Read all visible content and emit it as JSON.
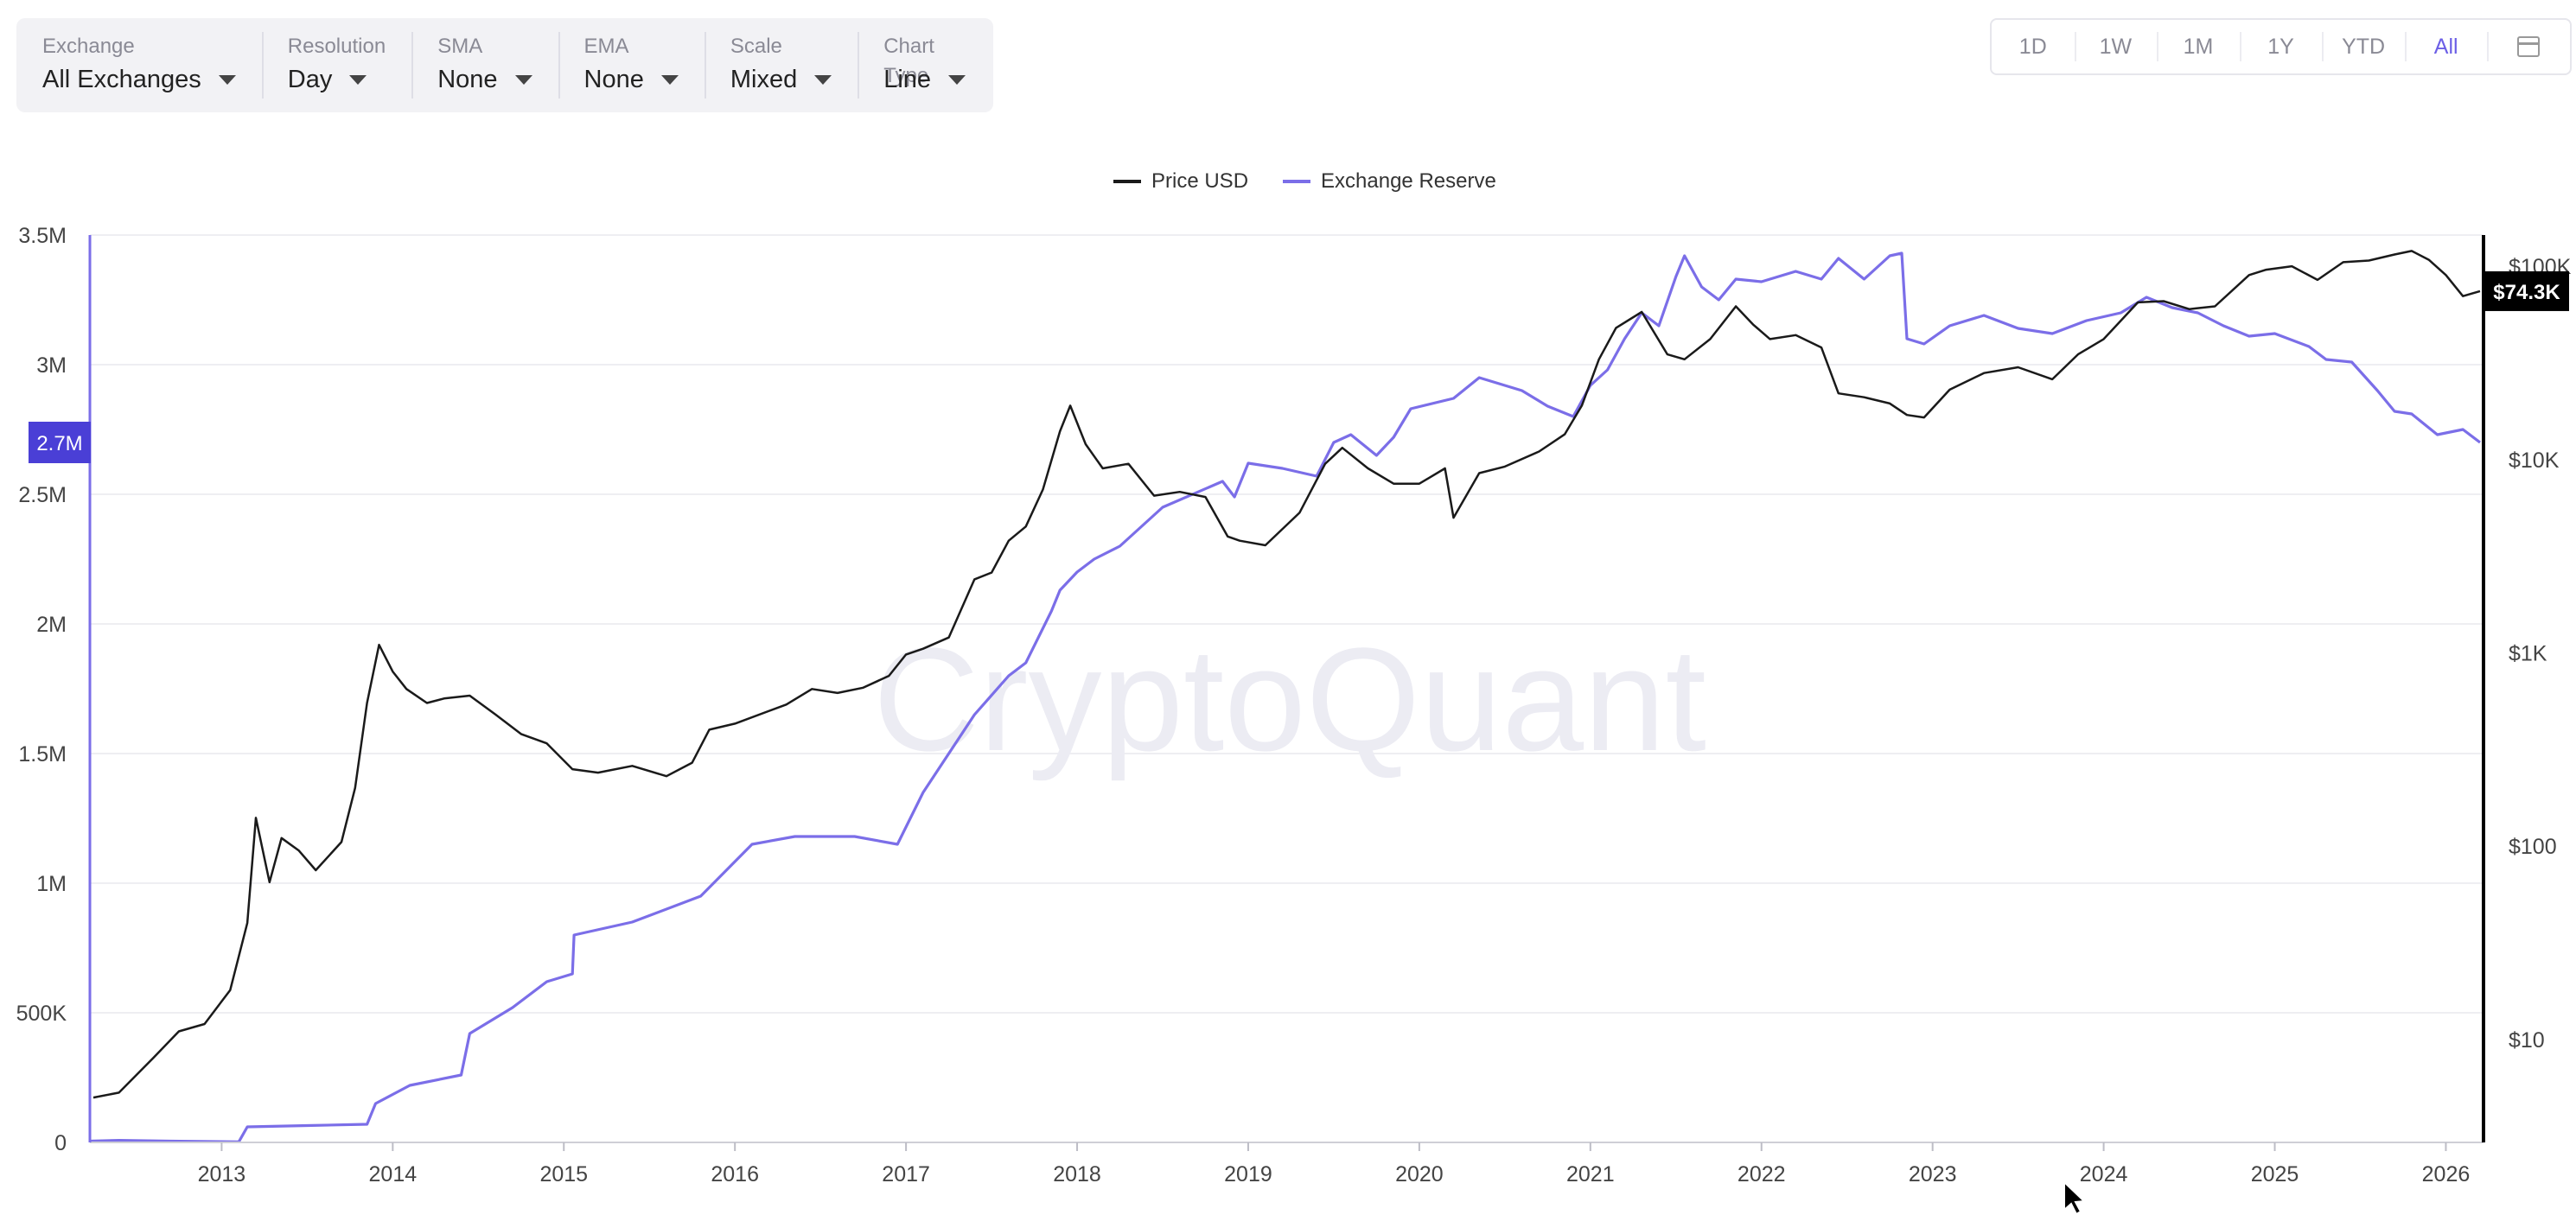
{
  "controls": [
    {
      "label": "Exchange",
      "value": "All Exchanges"
    },
    {
      "label": "Resolution",
      "value": "Day"
    },
    {
      "label": "SMA",
      "value": "None"
    },
    {
      "label": "EMA",
      "value": "None"
    },
    {
      "label": "Scale",
      "value": "Mixed"
    },
    {
      "label": "Chart Type",
      "value": "Line"
    }
  ],
  "ranges": [
    {
      "label": "1D",
      "active": false
    },
    {
      "label": "1W",
      "active": false
    },
    {
      "label": "1M",
      "active": false
    },
    {
      "label": "1Y",
      "active": false
    },
    {
      "label": "YTD",
      "active": false
    },
    {
      "label": "All",
      "active": true
    }
  ],
  "calendar_icon": "calendar-icon",
  "watermark": "CryptoQuant",
  "colors": {
    "price": "#1a1a1a",
    "reserve": "#7b6ee8",
    "accent": "#6c5fe6",
    "reserve_badge": "#4a3fd6",
    "price_badge": "#000000"
  },
  "chart_data": {
    "type": "line",
    "x_unit": "year",
    "xlim": [
      2012.23,
      2026.22
    ],
    "x_ticks": [
      2013,
      2014,
      2015,
      2016,
      2017,
      2018,
      2019,
      2020,
      2021,
      2022,
      2023,
      2024,
      2025,
      2026
    ],
    "x_tick_labels": [
      "2013",
      "2014",
      "2015",
      "2016",
      "2017",
      "2018",
      "2019",
      "2020",
      "2021",
      "2022",
      "2023",
      "2024",
      "2025",
      "2026"
    ],
    "legend_placement": "top-center",
    "grid": "horizontal",
    "left_axis": {
      "scale": "linear",
      "ylim": [
        0,
        3500000
      ],
      "ticks": [
        0,
        500000,
        1000000,
        1500000,
        2000000,
        2500000,
        3000000,
        3500000
      ],
      "tick_labels": [
        "0",
        "500K",
        "1M",
        "1.5M",
        "2M",
        "2.5M",
        "3M",
        "3.5M"
      ]
    },
    "right_axis": {
      "scale": "log",
      "ylim": [
        2.93,
        145000
      ],
      "ticks": [
        10,
        100,
        1000,
        10000,
        100000
      ],
      "tick_labels": [
        "$10",
        "$100",
        "$1K",
        "$10K",
        "$100K"
      ]
    },
    "series": [
      {
        "name": "Price USD",
        "axis": "right",
        "x": [
          2012.25,
          2012.4,
          2012.6,
          2012.75,
          2012.9,
          2013.05,
          2013.15,
          2013.2,
          2013.28,
          2013.35,
          2013.45,
          2013.55,
          2013.7,
          2013.78,
          2013.85,
          2013.92,
          2014.0,
          2014.08,
          2014.2,
          2014.3,
          2014.45,
          2014.6,
          2014.75,
          2014.9,
          2015.05,
          2015.2,
          2015.4,
          2015.6,
          2015.75,
          2015.85,
          2016.0,
          2016.3,
          2016.45,
          2016.6,
          2016.75,
          2016.9,
          2017.0,
          2017.1,
          2017.25,
          2017.4,
          2017.5,
          2017.6,
          2017.7,
          2017.8,
          2017.9,
          2017.96,
          2018.05,
          2018.15,
          2018.3,
          2018.45,
          2018.6,
          2018.75,
          2018.88,
          2018.95,
          2019.1,
          2019.3,
          2019.45,
          2019.55,
          2019.7,
          2019.85,
          2020.0,
          2020.15,
          2020.2,
          2020.35,
          2020.5,
          2020.7,
          2020.85,
          2020.95,
          2021.05,
          2021.15,
          2021.3,
          2021.45,
          2021.55,
          2021.7,
          2021.85,
          2021.95,
          2022.05,
          2022.2,
          2022.35,
          2022.45,
          2022.6,
          2022.75,
          2022.85,
          2022.95,
          2023.1,
          2023.3,
          2023.5,
          2023.7,
          2023.85,
          2024.0,
          2024.2,
          2024.35,
          2024.5,
          2024.65,
          2024.85,
          2024.95,
          2025.1,
          2025.25,
          2025.4,
          2025.55,
          2025.7,
          2025.8,
          2025.9,
          2026.0,
          2026.1,
          2026.2
        ],
        "y": [
          5,
          5.3,
          8,
          11,
          12,
          18,
          40,
          140,
          65,
          110,
          95,
          75,
          105,
          200,
          550,
          1100,
          800,
          650,
          550,
          580,
          600,
          480,
          380,
          340,
          250,
          240,
          260,
          230,
          270,
          400,
          430,
          540,
          650,
          620,
          660,
          760,
          980,
          1050,
          1200,
          2400,
          2600,
          3800,
          4500,
          7000,
          14000,
          19000,
          12000,
          9000,
          9500,
          6500,
          6800,
          6400,
          4000,
          3800,
          3600,
          5300,
          9500,
          11500,
          9000,
          7500,
          7500,
          9000,
          5000,
          8500,
          9200,
          11000,
          13500,
          19000,
          33000,
          48000,
          58000,
          35000,
          33000,
          42000,
          62000,
          50000,
          42000,
          44000,
          38000,
          22000,
          21000,
          19500,
          17000,
          16500,
          23000,
          28000,
          30000,
          26000,
          35000,
          42000,
          65000,
          66000,
          60000,
          62000,
          90000,
          96000,
          100000,
          85000,
          105000,
          107000,
          115000,
          120000,
          108000,
          90000,
          70000,
          74300
        ]
      },
      {
        "name": "Exchange Reserve",
        "axis": "left",
        "x": [
          2012.23,
          2012.4,
          2012.7,
          2013.1,
          2013.15,
          2013.5,
          2013.85,
          2013.9,
          2014.1,
          2014.4,
          2014.45,
          2014.7,
          2014.9,
          2015.05,
          2015.06,
          2015.4,
          2015.8,
          2016.1,
          2016.35,
          2016.7,
          2016.95,
          2017.1,
          2017.4,
          2017.6,
          2017.7,
          2017.85,
          2017.9,
          2018.0,
          2018.1,
          2018.25,
          2018.5,
          2018.85,
          2018.92,
          2019.0,
          2019.2,
          2019.4,
          2019.5,
          2019.6,
          2019.75,
          2019.85,
          2019.95,
          2020.2,
          2020.35,
          2020.6,
          2020.75,
          2020.9,
          2021.0,
          2021.1,
          2021.2,
          2021.3,
          2021.4,
          2021.5,
          2021.55,
          2021.65,
          2021.75,
          2021.85,
          2022.0,
          2022.2,
          2022.35,
          2022.45,
          2022.6,
          2022.75,
          2022.82,
          2022.85,
          2022.95,
          2023.1,
          2023.3,
          2023.5,
          2023.7,
          2023.9,
          2024.1,
          2024.25,
          2024.4,
          2024.55,
          2024.7,
          2024.85,
          2025.0,
          2025.2,
          2025.3,
          2025.45,
          2025.6,
          2025.7,
          2025.8,
          2025.95,
          2026.1,
          2026.2
        ],
        "y": [
          5000,
          8000,
          5000,
          2000,
          60000,
          65000,
          70000,
          150000,
          220000,
          260000,
          420000,
          520000,
          620000,
          650000,
          800000,
          850000,
          950000,
          1150000,
          1180000,
          1180000,
          1150000,
          1350000,
          1650000,
          1800000,
          1850000,
          2050000,
          2130000,
          2200000,
          2250000,
          2300000,
          2450000,
          2550000,
          2490000,
          2620000,
          2600000,
          2570000,
          2700000,
          2730000,
          2650000,
          2720000,
          2830000,
          2870000,
          2950000,
          2900000,
          2840000,
          2800000,
          2920000,
          2980000,
          3100000,
          3200000,
          3150000,
          3340000,
          3420000,
          3300000,
          3250000,
          3330000,
          3320000,
          3360000,
          3330000,
          3410000,
          3330000,
          3420000,
          3430000,
          3100000,
          3080000,
          3150000,
          3190000,
          3140000,
          3120000,
          3170000,
          3200000,
          3260000,
          3220000,
          3200000,
          3150000,
          3110000,
          3120000,
          3070000,
          3020000,
          3010000,
          2900000,
          2820000,
          2810000,
          2730000,
          2750000,
          2700000
        ]
      }
    ],
    "badges": [
      {
        "axis": "left",
        "text": "2.7M",
        "value": 2700000
      },
      {
        "axis": "right",
        "text": "$74.3K",
        "value": 74300
      }
    ]
  }
}
